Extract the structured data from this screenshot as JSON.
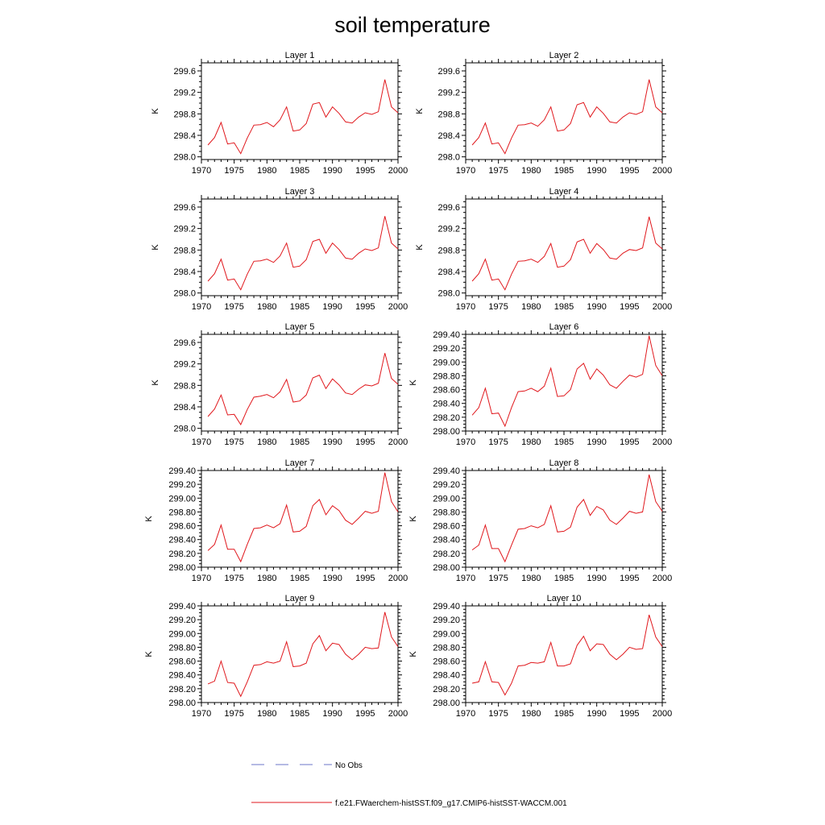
{
  "title": "soil temperature",
  "colors": {
    "model": "#e0171c",
    "obs": "#6b76c9",
    "frame": "#000000"
  },
  "legend": {
    "obs_label": "No Obs",
    "model_label": "f.e21.FWaerchem-histSST.f09_g17.CMIP6-histSST-WACCM.001"
  },
  "chart_data": [
    {
      "type": "line",
      "title": "Layer 1",
      "ylabel": "K",
      "xlim": [
        1970,
        2000
      ],
      "ylim": [
        297.95,
        299.75
      ],
      "xticks": [
        1970,
        1975,
        1980,
        1985,
        1990,
        1995,
        2000
      ],
      "yticks": [
        "298.0",
        "298.4",
        "298.8",
        "299.2",
        "299.6"
      ],
      "x": [
        1971,
        1972,
        1973,
        1974,
        1975,
        1976,
        1977,
        1978,
        1979,
        1980,
        1981,
        1982,
        1983,
        1984,
        1985,
        1986,
        1987,
        1988,
        1989,
        1990,
        1991,
        1992,
        1993,
        1994,
        1995,
        1996,
        1997,
        1998,
        1999,
        2000
      ],
      "series": [
        {
          "values": [
            298.22,
            298.36,
            298.64,
            298.24,
            298.26,
            298.06,
            298.35,
            298.59,
            298.6,
            298.64,
            298.56,
            298.69,
            298.93,
            298.48,
            298.5,
            298.62,
            298.98,
            299.01,
            298.74,
            298.93,
            298.81,
            298.65,
            298.63,
            298.74,
            298.82,
            298.79,
            298.84,
            299.44,
            298.93,
            298.82
          ]
        }
      ]
    },
    {
      "type": "line",
      "title": "Layer 2",
      "ylabel": "K",
      "xlim": [
        1970,
        2000
      ],
      "ylim": [
        297.95,
        299.75
      ],
      "xticks": [
        1970,
        1975,
        1980,
        1985,
        1990,
        1995,
        2000
      ],
      "yticks": [
        "298.0",
        "298.4",
        "298.8",
        "299.2",
        "299.6"
      ],
      "x": [
        1971,
        1972,
        1973,
        1974,
        1975,
        1976,
        1977,
        1978,
        1979,
        1980,
        1981,
        1982,
        1983,
        1984,
        1985,
        1986,
        1987,
        1988,
        1989,
        1990,
        1991,
        1992,
        1993,
        1994,
        1995,
        1996,
        1997,
        1998,
        1999,
        2000
      ],
      "series": [
        {
          "values": [
            298.22,
            298.36,
            298.63,
            298.24,
            298.26,
            298.06,
            298.35,
            298.59,
            298.6,
            298.63,
            298.57,
            298.69,
            298.93,
            298.48,
            298.5,
            298.62,
            298.97,
            299.01,
            298.74,
            298.93,
            298.81,
            298.65,
            298.63,
            298.74,
            298.82,
            298.79,
            298.84,
            299.44,
            298.93,
            298.82
          ]
        }
      ]
    },
    {
      "type": "line",
      "title": "Layer 3",
      "ylabel": "K",
      "xlim": [
        1970,
        2000
      ],
      "ylim": [
        297.95,
        299.75
      ],
      "xticks": [
        1970,
        1975,
        1980,
        1985,
        1990,
        1995,
        2000
      ],
      "yticks": [
        "298.0",
        "298.4",
        "298.8",
        "299.2",
        "299.6"
      ],
      "x": [
        1971,
        1972,
        1973,
        1974,
        1975,
        1976,
        1977,
        1978,
        1979,
        1980,
        1981,
        1982,
        1983,
        1984,
        1985,
        1986,
        1987,
        1988,
        1989,
        1990,
        1991,
        1992,
        1993,
        1994,
        1995,
        1996,
        1997,
        1998,
        1999,
        2000
      ],
      "series": [
        {
          "values": [
            298.22,
            298.36,
            298.63,
            298.24,
            298.26,
            298.06,
            298.35,
            298.59,
            298.6,
            298.63,
            298.57,
            298.69,
            298.93,
            298.48,
            298.5,
            298.62,
            298.96,
            299.0,
            298.74,
            298.93,
            298.81,
            298.65,
            298.63,
            298.74,
            298.82,
            298.79,
            298.84,
            299.43,
            298.93,
            298.82
          ]
        }
      ]
    },
    {
      "type": "line",
      "title": "Layer 4",
      "ylabel": "K",
      "xlim": [
        1970,
        2000
      ],
      "ylim": [
        297.95,
        299.75
      ],
      "xticks": [
        1970,
        1975,
        1980,
        1985,
        1990,
        1995,
        2000
      ],
      "yticks": [
        "298.0",
        "298.4",
        "298.8",
        "299.2",
        "299.6"
      ],
      "x": [
        1971,
        1972,
        1973,
        1974,
        1975,
        1976,
        1977,
        1978,
        1979,
        1980,
        1981,
        1982,
        1983,
        1984,
        1985,
        1986,
        1987,
        1988,
        1989,
        1990,
        1991,
        1992,
        1993,
        1994,
        1995,
        1996,
        1997,
        1998,
        1999,
        2000
      ],
      "series": [
        {
          "values": [
            298.22,
            298.36,
            298.63,
            298.24,
            298.26,
            298.06,
            298.35,
            298.59,
            298.6,
            298.63,
            298.57,
            298.68,
            298.92,
            298.48,
            298.5,
            298.62,
            298.95,
            299.0,
            298.74,
            298.92,
            298.81,
            298.65,
            298.63,
            298.74,
            298.81,
            298.79,
            298.84,
            299.42,
            298.93,
            298.82
          ]
        }
      ]
    },
    {
      "type": "line",
      "title": "Layer 5",
      "ylabel": "K",
      "xlim": [
        1970,
        2000
      ],
      "ylim": [
        297.95,
        299.75
      ],
      "xticks": [
        1970,
        1975,
        1980,
        1985,
        1990,
        1995,
        2000
      ],
      "yticks": [
        "298.0",
        "298.4",
        "298.8",
        "299.2",
        "299.6"
      ],
      "x": [
        1971,
        1972,
        1973,
        1974,
        1975,
        1976,
        1977,
        1978,
        1979,
        1980,
        1981,
        1982,
        1983,
        1984,
        1985,
        1986,
        1987,
        1988,
        1989,
        1990,
        1991,
        1992,
        1993,
        1994,
        1995,
        1996,
        1997,
        1998,
        1999,
        2000
      ],
      "series": [
        {
          "values": [
            298.22,
            298.36,
            298.62,
            298.25,
            298.26,
            298.07,
            298.35,
            298.58,
            298.6,
            298.63,
            298.57,
            298.68,
            298.91,
            298.49,
            298.51,
            298.62,
            298.94,
            298.99,
            298.74,
            298.92,
            298.81,
            298.66,
            298.63,
            298.73,
            298.81,
            298.79,
            298.84,
            299.4,
            298.93,
            298.82
          ]
        }
      ]
    },
    {
      "type": "line",
      "title": "Layer 6",
      "ylabel": "K",
      "xlim": [
        1970,
        2000
      ],
      "ylim": [
        298.0,
        299.4
      ],
      "xticks": [
        1970,
        1975,
        1980,
        1985,
        1990,
        1995,
        2000
      ],
      "yticks": [
        "298.00",
        "298.20",
        "298.40",
        "298.60",
        "298.80",
        "299.00",
        "299.20",
        "299.40"
      ],
      "x": [
        1971,
        1972,
        1973,
        1974,
        1975,
        1976,
        1977,
        1978,
        1979,
        1980,
        1981,
        1982,
        1983,
        1984,
        1985,
        1986,
        1987,
        1988,
        1989,
        1990,
        1991,
        1992,
        1993,
        1994,
        1995,
        1996,
        1997,
        1998,
        1999,
        2000
      ],
      "series": [
        {
          "values": [
            298.23,
            298.34,
            298.62,
            298.25,
            298.26,
            298.07,
            298.34,
            298.57,
            298.58,
            298.62,
            298.57,
            298.65,
            298.91,
            298.5,
            298.51,
            298.6,
            298.9,
            298.98,
            298.75,
            298.9,
            298.81,
            298.67,
            298.62,
            298.72,
            298.81,
            298.78,
            298.82,
            299.38,
            298.95,
            298.8
          ]
        }
      ]
    },
    {
      "type": "line",
      "title": "Layer 7",
      "ylabel": "K",
      "xlim": [
        1970,
        2000
      ],
      "ylim": [
        298.0,
        299.4
      ],
      "xticks": [
        1970,
        1975,
        1980,
        1985,
        1990,
        1995,
        2000
      ],
      "yticks": [
        "298.00",
        "298.20",
        "298.40",
        "298.60",
        "298.80",
        "299.00",
        "299.20",
        "299.40"
      ],
      "x": [
        1971,
        1972,
        1973,
        1974,
        1975,
        1976,
        1977,
        1978,
        1979,
        1980,
        1981,
        1982,
        1983,
        1984,
        1985,
        1986,
        1987,
        1988,
        1989,
        1990,
        1991,
        1992,
        1993,
        1994,
        1995,
        1996,
        1997,
        1998,
        1999,
        2000
      ],
      "series": [
        {
          "values": [
            298.24,
            298.33,
            298.61,
            298.26,
            298.26,
            298.08,
            298.33,
            298.56,
            298.57,
            298.61,
            298.57,
            298.63,
            298.9,
            298.51,
            298.52,
            298.59,
            298.89,
            298.98,
            298.76,
            298.89,
            298.82,
            298.68,
            298.62,
            298.71,
            298.81,
            298.78,
            298.81,
            299.37,
            298.95,
            298.8
          ]
        }
      ]
    },
    {
      "type": "line",
      "title": "Layer 8",
      "ylabel": "K",
      "xlim": [
        1970,
        2000
      ],
      "ylim": [
        298.0,
        299.4
      ],
      "xticks": [
        1970,
        1975,
        1980,
        1985,
        1990,
        1995,
        2000
      ],
      "yticks": [
        "298.00",
        "298.20",
        "298.40",
        "298.60",
        "298.80",
        "299.00",
        "299.20",
        "299.40"
      ],
      "x": [
        1971,
        1972,
        1973,
        1974,
        1975,
        1976,
        1977,
        1978,
        1979,
        1980,
        1981,
        1982,
        1983,
        1984,
        1985,
        1986,
        1987,
        1988,
        1989,
        1990,
        1991,
        1992,
        1993,
        1994,
        1995,
        1996,
        1997,
        1998,
        1999,
        2000
      ],
      "series": [
        {
          "values": [
            298.25,
            298.32,
            298.61,
            298.27,
            298.27,
            298.08,
            298.32,
            298.55,
            298.56,
            298.6,
            298.57,
            298.62,
            298.89,
            298.51,
            298.52,
            298.58,
            298.87,
            298.98,
            298.75,
            298.88,
            298.83,
            298.68,
            298.62,
            298.71,
            298.81,
            298.78,
            298.8,
            299.34,
            298.95,
            298.81
          ]
        }
      ]
    },
    {
      "type": "line",
      "title": "Layer 9",
      "ylabel": "K",
      "xlim": [
        1970,
        2000
      ],
      "ylim": [
        298.0,
        299.4
      ],
      "xticks": [
        1970,
        1975,
        1980,
        1985,
        1990,
        1995,
        2000
      ],
      "yticks": [
        "298.00",
        "298.20",
        "298.40",
        "298.60",
        "298.80",
        "299.00",
        "299.20",
        "299.40"
      ],
      "x": [
        1971,
        1972,
        1973,
        1974,
        1975,
        1976,
        1977,
        1978,
        1979,
        1980,
        1981,
        1982,
        1983,
        1984,
        1985,
        1986,
        1987,
        1988,
        1989,
        1990,
        1991,
        1992,
        1993,
        1994,
        1995,
        1996,
        1997,
        1998,
        1999,
        2000
      ],
      "series": [
        {
          "values": [
            298.27,
            298.31,
            298.6,
            298.29,
            298.28,
            298.09,
            298.3,
            298.54,
            298.55,
            298.59,
            298.57,
            298.6,
            298.88,
            298.52,
            298.53,
            298.57,
            298.85,
            298.97,
            298.75,
            298.86,
            298.84,
            298.7,
            298.62,
            298.7,
            298.8,
            298.78,
            298.79,
            299.31,
            298.95,
            298.81
          ]
        }
      ]
    },
    {
      "type": "line",
      "title": "Layer 10",
      "ylabel": "K",
      "xlim": [
        1970,
        2000
      ],
      "ylim": [
        298.0,
        299.4
      ],
      "xticks": [
        1970,
        1975,
        1980,
        1985,
        1990,
        1995,
        2000
      ],
      "yticks": [
        "298.00",
        "298.20",
        "298.40",
        "298.60",
        "298.80",
        "299.00",
        "299.20",
        "299.40"
      ],
      "x": [
        1971,
        1972,
        1973,
        1974,
        1975,
        1976,
        1977,
        1978,
        1979,
        1980,
        1981,
        1982,
        1983,
        1984,
        1985,
        1986,
        1987,
        1988,
        1989,
        1990,
        1991,
        1992,
        1993,
        1994,
        1995,
        1996,
        1997,
        1998,
        1999,
        2000
      ],
      "series": [
        {
          "values": [
            298.28,
            298.3,
            298.59,
            298.3,
            298.29,
            298.11,
            298.28,
            298.53,
            298.54,
            298.58,
            298.57,
            298.59,
            298.87,
            298.53,
            298.53,
            298.56,
            298.83,
            298.96,
            298.75,
            298.85,
            298.84,
            298.7,
            298.62,
            298.7,
            298.8,
            298.77,
            298.78,
            299.27,
            298.95,
            298.81
          ]
        }
      ]
    }
  ]
}
